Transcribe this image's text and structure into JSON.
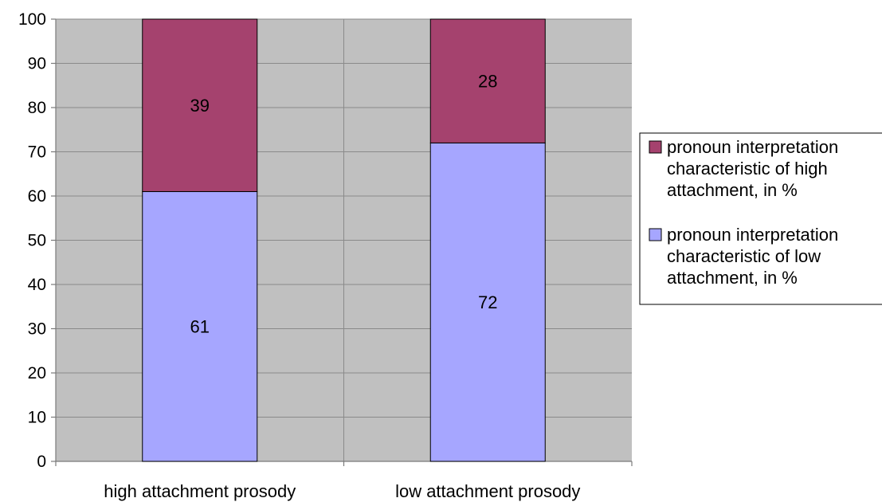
{
  "chart_data": {
    "type": "bar",
    "stacked": true,
    "categories": [
      "high attachment prosody",
      "low attachment prosody"
    ],
    "series": [
      {
        "name": "pronoun interpretation characteristic of low attachment, in %",
        "legend_lines": [
          "pronoun interpretation",
          "characteristic of low",
          "attachment, in %"
        ],
        "values": [
          61,
          72
        ],
        "color": "#a6a6ff"
      },
      {
        "name": "pronoun interpretation characteristic of high attachment, in %",
        "legend_lines": [
          "pronoun interpretation",
          "characteristic of high",
          "attachment, in %"
        ],
        "values": [
          39,
          28
        ],
        "color": "#a5426e"
      }
    ],
    "legend_order": [
      1,
      0
    ],
    "title": "",
    "xlabel": "",
    "ylabel": "",
    "ylim": [
      0,
      100
    ],
    "yticks": [
      0,
      10,
      20,
      30,
      40,
      50,
      60,
      70,
      80,
      90,
      100
    ],
    "grid": true,
    "plot_background": "#c0c0c0",
    "legend_position": "right"
  }
}
